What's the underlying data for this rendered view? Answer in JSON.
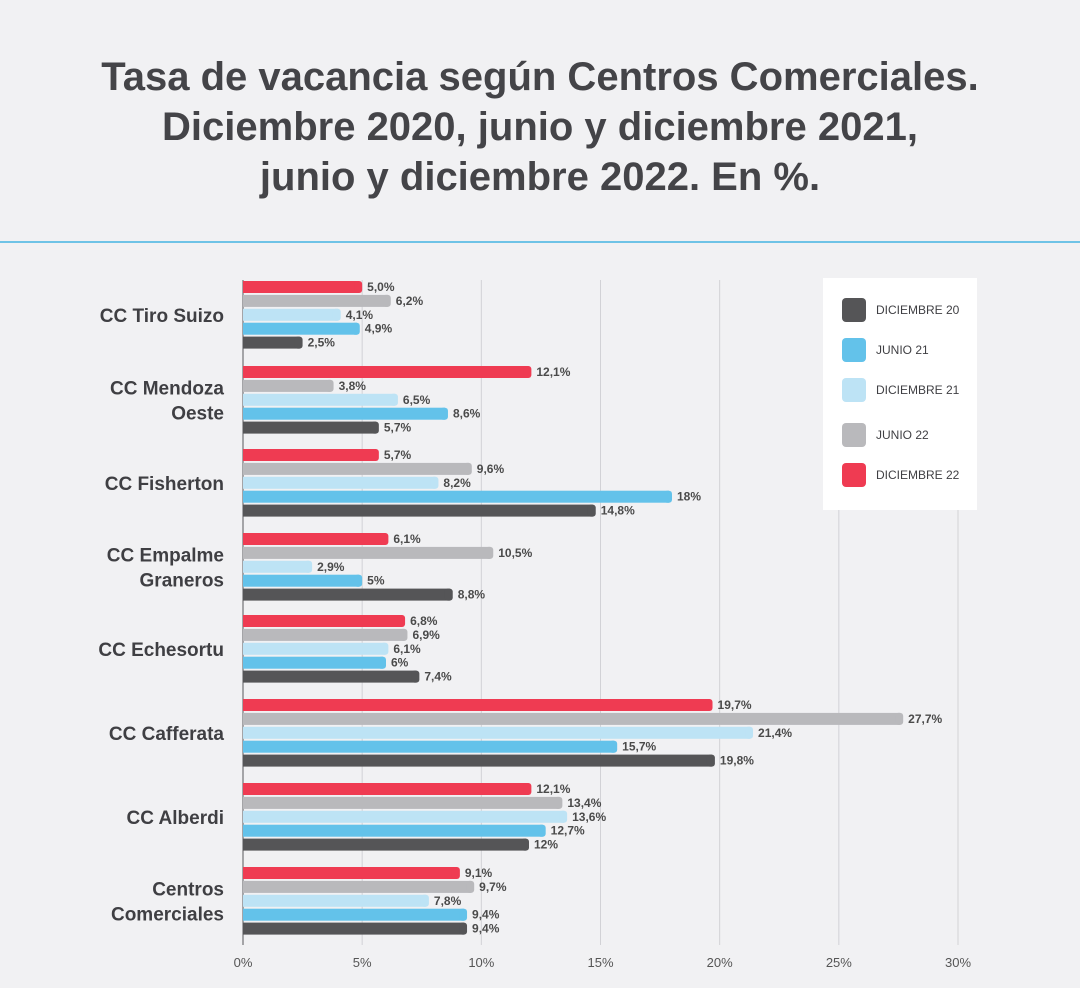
{
  "title": {
    "line1": "Tasa de vacancia según Centros Comerciales.",
    "line2": "Diciembre 2020, junio y diciembre 2021,",
    "line3": "junio y diciembre 2022. En %."
  },
  "colors": {
    "DICIEMBRE 20": "#555557",
    "JUNIO 21": "#63c2ea",
    "DICIEMBRE 21": "#bde3f5",
    "JUNIO 22": "#b9b9bc",
    "DICIEMBRE 22": "#ef3b52",
    "divider": "#6fc3e6",
    "background": "#f1f1f3"
  },
  "chart_data": {
    "type": "bar",
    "orientation": "horizontal",
    "title": "Tasa de vacancia según Centros Comerciales. Diciembre 2020, junio y diciembre 2021, junio y diciembre 2022. En %.",
    "categories": [
      [
        "CC Tiro Suizo"
      ],
      [
        "CC Mendoza",
        "Oeste"
      ],
      [
        "CC Fisherton"
      ],
      [
        "CC Empalme",
        "Graneros"
      ],
      [
        "CC Echesortu"
      ],
      [
        "CC Cafferata"
      ],
      [
        "CC Alberdi"
      ],
      [
        "Centros",
        "Comerciales"
      ]
    ],
    "series": [
      {
        "name": "DICIEMBRE 22",
        "values": [
          5.0,
          12.1,
          5.7,
          6.1,
          6.8,
          19.7,
          12.1,
          9.1
        ],
        "labels": [
          "5,0%",
          "12,1%",
          "5,7%",
          "6,1%",
          "6,8%",
          "19,7%",
          "12,1%",
          "9,1%"
        ]
      },
      {
        "name": "JUNIO 22",
        "values": [
          6.2,
          3.8,
          9.6,
          10.5,
          6.9,
          27.7,
          13.4,
          9.7
        ],
        "labels": [
          "6,2%",
          "3,8%",
          "9,6%",
          "10,5%",
          "6,9%",
          "27,7%",
          "13,4%",
          "9,7%"
        ]
      },
      {
        "name": "DICIEMBRE 21",
        "values": [
          4.1,
          6.5,
          8.2,
          2.9,
          6.1,
          21.4,
          13.6,
          7.8
        ],
        "labels": [
          "4,1%",
          "6,5%",
          "8,2%",
          "2,9%",
          "6,1%",
          "21,4%",
          "13,6%",
          "7,8%"
        ]
      },
      {
        "name": "JUNIO 21",
        "values": [
          4.9,
          8.6,
          18,
          5,
          6,
          15.7,
          12.7,
          9.4
        ],
        "labels": [
          "4,9%",
          "8,6%",
          "18%",
          "5%",
          "6%",
          "15,7%",
          "12,7%",
          "9,4%"
        ]
      },
      {
        "name": "DICIEMBRE 20",
        "values": [
          2.5,
          5.7,
          14.8,
          8.8,
          7.4,
          19.8,
          12,
          9.4
        ],
        "labels": [
          "2,5%",
          "5,7%",
          "14,8%",
          "8,8%",
          "7,4%",
          "19,8%",
          "12%",
          "9,4%"
        ]
      }
    ],
    "xlim": [
      0,
      30
    ],
    "xticks": [
      0,
      5,
      10,
      15,
      20,
      25,
      30
    ],
    "xtick_labels": [
      "0%",
      "5%",
      "10%",
      "15%",
      "20%",
      "25%",
      "30%"
    ],
    "grid": "vertical",
    "legend": {
      "placement": "top-right",
      "entries": [
        "DICIEMBRE 20",
        "JUNIO 21",
        "DICIEMBRE 21",
        "JUNIO 22",
        "DICIEMBRE 22"
      ]
    }
  }
}
